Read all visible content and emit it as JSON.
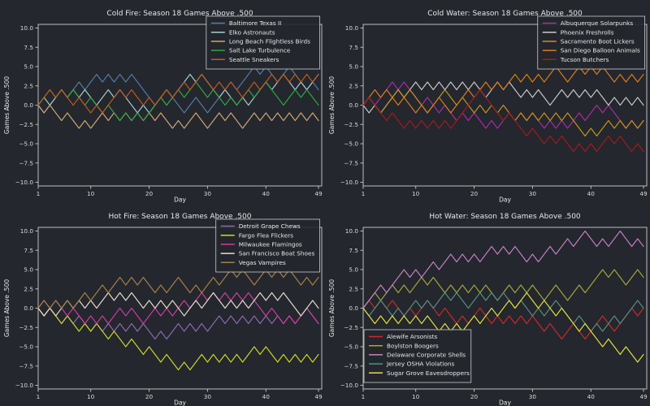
{
  "figure": {
    "background": "#24272e",
    "text_color": "#e8e8e8",
    "tick_label_color": "#d9d9d9",
    "spine_color": "#bcbcbc",
    "legend_border_color": "#cccccc"
  },
  "axes": {
    "xlabel": "Day",
    "ylabel": "Games Above .500",
    "xticks": [
      1,
      10,
      20,
      30,
      40,
      49
    ],
    "xtick_labels": [
      "1",
      "10",
      "20",
      "30",
      "40",
      "49"
    ],
    "yticks": [
      10,
      7.5,
      5,
      2.5,
      0,
      -2.5,
      -5,
      -7.5,
      -10
    ],
    "ytick_labels": [
      "10.0",
      "7.5",
      "5.0",
      "2.5",
      "0.0",
      "−2.5",
      "−5.0",
      "−7.5",
      "−10.0"
    ]
  },
  "chart_data": [
    {
      "type": "line",
      "title": "Cold Fire: Season 18 Games Above .500",
      "xlabel": "Day",
      "ylabel": "Games Above .500",
      "x_range": [
        1,
        49
      ],
      "ylim": [
        -10.5,
        10.5
      ],
      "grid": false,
      "legend_loc": "upper right",
      "series": [
        {
          "name": "Baltimore Texas II",
          "color": "#557ba8",
          "values": [
            0,
            -1,
            0,
            1,
            2,
            1,
            2,
            3,
            2,
            3,
            4,
            3,
            4,
            3,
            4,
            3,
            4,
            3,
            2,
            1,
            0,
            1,
            0,
            1,
            0,
            -1,
            0,
            1,
            0,
            -1,
            0,
            1,
            2,
            3,
            2,
            3,
            4,
            5,
            4,
            5,
            4,
            3,
            4,
            5,
            4,
            3,
            2,
            3,
            2
          ]
        },
        {
          "name": "Elko Astronauts",
          "color": "#a5cfcf",
          "values": [
            0,
            1,
            0,
            1,
            2,
            1,
            2,
            1,
            2,
            1,
            0,
            1,
            2,
            1,
            2,
            1,
            0,
            -1,
            0,
            -1,
            0,
            1,
            2,
            1,
            2,
            3,
            4,
            3,
            4,
            3,
            2,
            1,
            2,
            1,
            0,
            1,
            0,
            1,
            2,
            3,
            2,
            3,
            4,
            3,
            2,
            3,
            2,
            3,
            4
          ]
        },
        {
          "name": "Long Beach Flightless Birds",
          "color": "#cfa972",
          "values": [
            0,
            -1,
            0,
            -1,
            -2,
            -1,
            -2,
            -3,
            -2,
            -3,
            -2,
            -1,
            -2,
            -1,
            -2,
            -1,
            -2,
            -1,
            -2,
            -1,
            -2,
            -1,
            -2,
            -3,
            -2,
            -3,
            -2,
            -1,
            -2,
            -3,
            -2,
            -1,
            -2,
            -1,
            -2,
            -3,
            -2,
            -1,
            -2,
            -1,
            -2,
            -1,
            -2,
            -1,
            -2,
            -1,
            -2,
            -1,
            -2
          ]
        },
        {
          "name": "Salt Lake Turbulence",
          "color": "#2fa83f",
          "values": [
            0,
            1,
            2,
            1,
            2,
            1,
            2,
            1,
            0,
            1,
            0,
            -1,
            0,
            -1,
            -2,
            -1,
            -2,
            -1,
            -2,
            -1,
            0,
            1,
            0,
            1,
            2,
            1,
            2,
            3,
            2,
            1,
            2,
            1,
            0,
            1,
            0,
            1,
            2,
            1,
            2,
            3,
            2,
            1,
            0,
            1,
            2,
            1,
            2,
            1,
            0
          ]
        },
        {
          "name": "Seattle Sneakers",
          "color": "#bf5b1d",
          "values": [
            0,
            1,
            2,
            1,
            2,
            1,
            0,
            1,
            0,
            -1,
            0,
            -1,
            0,
            1,
            2,
            1,
            2,
            1,
            0,
            1,
            0,
            1,
            2,
            1,
            2,
            3,
            2,
            3,
            4,
            3,
            2,
            3,
            2,
            3,
            2,
            1,
            2,
            3,
            2,
            3,
            4,
            3,
            4,
            3,
            4,
            3,
            4,
            3,
            4
          ]
        }
      ]
    },
    {
      "type": "line",
      "title": "Cold Water: Season 18 Games Above .500",
      "xlabel": "Day",
      "ylabel": "Games Above .500",
      "x_range": [
        1,
        49
      ],
      "ylim": [
        -10.5,
        10.5
      ],
      "grid": false,
      "legend_loc": "upper right",
      "series": [
        {
          "name": "Albuquerque Solarpunks",
          "color": "#a82ca8",
          "values": [
            0,
            1,
            0,
            1,
            2,
            3,
            2,
            3,
            2,
            1,
            0,
            1,
            0,
            -1,
            0,
            -1,
            -2,
            -1,
            -2,
            -1,
            -2,
            -3,
            -2,
            -3,
            -2,
            -1,
            -2,
            -1,
            -2,
            -1,
            -2,
            -3,
            -2,
            -3,
            -2,
            -3,
            -2,
            -1,
            -2,
            -1,
            0,
            -1,
            0,
            -1,
            -2,
            -3,
            -2,
            -3,
            -2
          ]
        },
        {
          "name": "Phoenix Freshrolls",
          "color": "#c9c9c9",
          "values": [
            0,
            -1,
            0,
            -1,
            0,
            1,
            2,
            1,
            2,
            3,
            2,
            3,
            2,
            3,
            2,
            3,
            2,
            3,
            2,
            3,
            2,
            1,
            2,
            3,
            2,
            3,
            2,
            1,
            2,
            1,
            2,
            1,
            0,
            1,
            2,
            1,
            2,
            1,
            2,
            1,
            2,
            1,
            0,
            1,
            0,
            1,
            0,
            1,
            0
          ]
        },
        {
          "name": "Sacramento Boot Lickers",
          "color": "#c7951c",
          "values": [
            0,
            1,
            0,
            -1,
            0,
            1,
            2,
            1,
            2,
            1,
            0,
            -1,
            0,
            1,
            2,
            1,
            0,
            1,
            0,
            -1,
            0,
            -1,
            0,
            -1,
            0,
            -1,
            -2,
            -1,
            -2,
            -1,
            -2,
            -1,
            -2,
            -1,
            -2,
            -1,
            -2,
            -3,
            -4,
            -3,
            -4,
            -3,
            -2,
            -3,
            -2,
            -3,
            -2,
            -3,
            -2
          ]
        },
        {
          "name": "San Diego Balloon Animals",
          "color": "#dd7d1a",
          "values": [
            0,
            1,
            2,
            1,
            2,
            1,
            0,
            1,
            0,
            -1,
            0,
            -1,
            0,
            1,
            0,
            -1,
            0,
            1,
            2,
            1,
            2,
            3,
            2,
            3,
            2,
            3,
            4,
            3,
            4,
            3,
            4,
            3,
            4,
            5,
            4,
            3,
            4,
            5,
            4,
            5,
            4,
            5,
            4,
            3,
            4,
            3,
            4,
            3,
            4
          ]
        },
        {
          "name": "Tucson Butchers",
          "color": "#a11c1c",
          "values": [
            0,
            1,
            0,
            -1,
            -2,
            -1,
            -2,
            -3,
            -2,
            -3,
            -2,
            -3,
            -2,
            -3,
            -2,
            -3,
            -2,
            -1,
            0,
            1,
            2,
            1,
            0,
            -1,
            -2,
            -1,
            -2,
            -3,
            -4,
            -3,
            -4,
            -5,
            -4,
            -5,
            -4,
            -5,
            -6,
            -5,
            -6,
            -5,
            -6,
            -5,
            -4,
            -5,
            -4,
            -5,
            -6,
            -5,
            -6
          ]
        }
      ]
    },
    {
      "type": "line",
      "title": "Hot Fire: Season 18 Games Above .500",
      "xlabel": "Day",
      "ylabel": "Games Above .500",
      "x_range": [
        1,
        49
      ],
      "ylim": [
        -10.5,
        10.5
      ],
      "grid": false,
      "legend_loc": "upper right",
      "series": [
        {
          "name": "Detroit Grape Chews",
          "color": "#8e6bae",
          "values": [
            0,
            -1,
            0,
            -1,
            -2,
            -1,
            -2,
            -1,
            -2,
            -3,
            -2,
            -3,
            -2,
            -3,
            -2,
            -3,
            -2,
            -3,
            -2,
            -3,
            -4,
            -3,
            -4,
            -3,
            -2,
            -3,
            -2,
            -3,
            -2,
            -3,
            -2,
            -1,
            -2,
            -1,
            -2,
            -1,
            -2,
            -1,
            -2,
            -1,
            -2,
            -1,
            -2,
            -1,
            -2,
            -1,
            0,
            -1,
            -2
          ]
        },
        {
          "name": "Fargo Flea Flickers",
          "color": "#cdd82b",
          "values": [
            0,
            -1,
            0,
            -1,
            -2,
            -1,
            -2,
            -3,
            -2,
            -3,
            -2,
            -3,
            -4,
            -3,
            -4,
            -5,
            -4,
            -5,
            -6,
            -5,
            -6,
            -7,
            -6,
            -7,
            -8,
            -7,
            -8,
            -7,
            -6,
            -7,
            -6,
            -7,
            -6,
            -7,
            -6,
            -7,
            -6,
            -5,
            -6,
            -5,
            -6,
            -7,
            -6,
            -7,
            -6,
            -7,
            -6,
            -7,
            -6
          ]
        },
        {
          "name": "Milwaukee Flamingos",
          "color": "#d23ca0",
          "values": [
            0,
            1,
            0,
            1,
            0,
            -1,
            0,
            -1,
            -2,
            -1,
            -2,
            -1,
            -2,
            -1,
            0,
            -1,
            0,
            -1,
            -2,
            -1,
            0,
            -1,
            0,
            -1,
            0,
            1,
            0,
            1,
            2,
            1,
            2,
            1,
            2,
            1,
            2,
            1,
            2,
            1,
            0,
            -1,
            0,
            -1,
            -2,
            -1,
            -2,
            -1,
            0,
            -1,
            -2
          ]
        },
        {
          "name": "San Francisco Boat Shoes",
          "color": "#e7ddcf",
          "values": [
            0,
            -1,
            0,
            -1,
            0,
            1,
            0,
            1,
            0,
            1,
            0,
            1,
            2,
            1,
            2,
            1,
            2,
            1,
            0,
            1,
            0,
            1,
            0,
            1,
            0,
            -1,
            0,
            1,
            0,
            1,
            2,
            1,
            0,
            1,
            0,
            1,
            0,
            1,
            2,
            1,
            2,
            1,
            2,
            1,
            0,
            -1,
            0,
            1,
            0
          ]
        },
        {
          "name": "Vegas Vampires",
          "color": "#a98142",
          "values": [
            0,
            1,
            0,
            1,
            0,
            1,
            0,
            1,
            2,
            1,
            2,
            3,
            2,
            3,
            4,
            3,
            4,
            3,
            4,
            3,
            2,
            3,
            2,
            3,
            4,
            3,
            2,
            3,
            2,
            3,
            4,
            3,
            4,
            5,
            4,
            5,
            4,
            3,
            4,
            5,
            4,
            5,
            4,
            5,
            4,
            3,
            4,
            3,
            4
          ]
        }
      ]
    },
    {
      "type": "line",
      "title": "Hot Water: Season 18 Games Above .500",
      "xlabel": "Day",
      "ylabel": "Games Above .500",
      "x_range": [
        1,
        49
      ],
      "ylim": [
        -10.5,
        10.5
      ],
      "grid": false,
      "legend_loc": "lower left",
      "series": [
        {
          "name": "Alewife Arsonists",
          "color": "#cc2a2a",
          "values": [
            0,
            1,
            0,
            1,
            0,
            1,
            0,
            -1,
            0,
            -1,
            0,
            1,
            0,
            -1,
            0,
            -1,
            -2,
            -1,
            -2,
            -1,
            0,
            -1,
            -2,
            -1,
            -2,
            -1,
            -2,
            -1,
            -2,
            -1,
            -2,
            -3,
            -2,
            -3,
            -4,
            -3,
            -2,
            -3,
            -4,
            -3,
            -2,
            -1,
            -2,
            -3,
            -2,
            -1,
            0,
            -1,
            0
          ]
        },
        {
          "name": "Boylston Boogers",
          "color": "#a3a838",
          "values": [
            0,
            1,
            2,
            1,
            2,
            3,
            2,
            3,
            2,
            3,
            4,
            3,
            4,
            3,
            2,
            3,
            2,
            3,
            2,
            3,
            2,
            3,
            2,
            1,
            2,
            3,
            2,
            3,
            2,
            3,
            2,
            1,
            2,
            3,
            2,
            1,
            2,
            3,
            2,
            3,
            4,
            5,
            4,
            5,
            4,
            3,
            4,
            5,
            4
          ]
        },
        {
          "name": "Delaware Corporate Shells",
          "color": "#c77fc7",
          "values": [
            0,
            1,
            2,
            3,
            2,
            3,
            4,
            5,
            4,
            5,
            4,
            5,
            6,
            5,
            6,
            7,
            6,
            7,
            6,
            7,
            6,
            7,
            8,
            7,
            8,
            7,
            8,
            7,
            6,
            7,
            6,
            7,
            8,
            7,
            8,
            9,
            8,
            9,
            10,
            9,
            8,
            9,
            8,
            9,
            10,
            9,
            8,
            9,
            8
          ]
        },
        {
          "name": "Jersey OSHA Violations",
          "color": "#57907f",
          "values": [
            0,
            -1,
            0,
            1,
            0,
            -1,
            0,
            -1,
            0,
            1,
            0,
            1,
            0,
            1,
            2,
            1,
            2,
            1,
            0,
            1,
            2,
            1,
            2,
            1,
            2,
            1,
            0,
            1,
            0,
            -1,
            0,
            -1,
            0,
            1,
            0,
            -1,
            -2,
            -1,
            -2,
            -3,
            -2,
            -3,
            -2,
            -1,
            -2,
            -1,
            0,
            1,
            0
          ]
        },
        {
          "name": "Sugar Grove Eavesdroppers",
          "color": "#e3e13e",
          "values": [
            0,
            -1,
            -2,
            -1,
            -2,
            -1,
            -2,
            -1,
            -2,
            -1,
            -2,
            -1,
            -2,
            -3,
            -2,
            -3,
            -2,
            -3,
            -2,
            -1,
            -2,
            -1,
            0,
            -1,
            0,
            1,
            0,
            1,
            2,
            1,
            0,
            1,
            0,
            -1,
            0,
            -1,
            -2,
            -3,
            -2,
            -3,
            -4,
            -5,
            -4,
            -5,
            -6,
            -5,
            -6,
            -7,
            -6
          ]
        }
      ]
    }
  ]
}
